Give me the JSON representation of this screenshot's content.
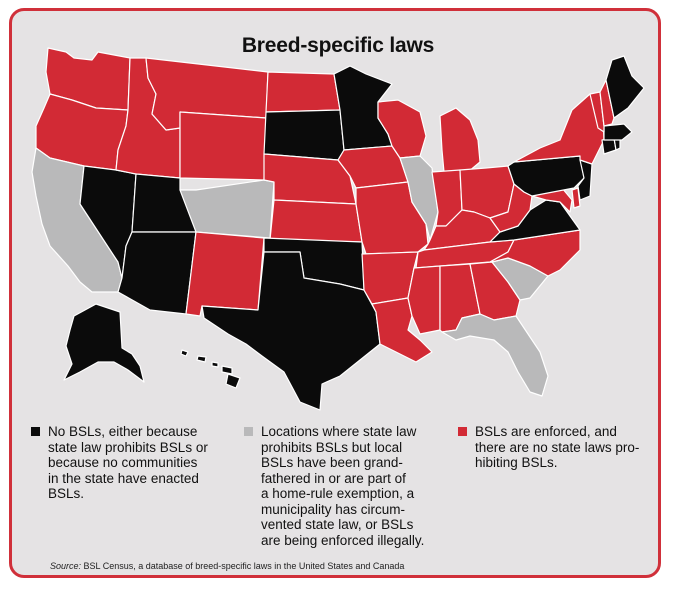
{
  "title": "Breed-specific laws",
  "colors": {
    "no_bsl": "#0b0b0b",
    "local_grandfathered": "#b9b9ba",
    "enforced": "#d22a35",
    "border": "#d0303a",
    "background": "#e5e3e4"
  },
  "legend": [
    {
      "category": "no_bsl",
      "text": "No BSLs, either because\nstate law prohibits BSLs or\nbecause no communities\nin the state have enacted\nBSLs."
    },
    {
      "category": "local_grandfathered",
      "text": "Locations where state law\nprohibits BSLs but local\nBSLs have been grand-\nfathered in or are part of\na home-rule exemption, a\nmunicipality has circum-\nvented state law, or BSLs\nare being enforced illegally."
    },
    {
      "category": "enforced",
      "text": "BSLs are enforced, and\nthere are no state laws pro-\nhibiting BSLs."
    }
  ],
  "source": {
    "label": "Source:",
    "text": " BSL Census, a database of breed-specific laws in the United States and Canada"
  },
  "states": {
    "WA": "enforced",
    "OR": "enforced",
    "CA": "local_grandfathered",
    "NV": "no_bsl",
    "ID": "enforced",
    "MT": "enforced",
    "WY": "enforced",
    "UT": "no_bsl",
    "AZ": "no_bsl",
    "CO": "local_grandfathered",
    "NM": "enforced",
    "ND": "enforced",
    "SD": "no_bsl",
    "NE": "enforced",
    "KS": "enforced",
    "OK": "no_bsl",
    "TX": "no_bsl",
    "MN": "no_bsl",
    "IA": "enforced",
    "MO": "enforced",
    "AR": "enforced",
    "LA": "enforced",
    "WI": "enforced",
    "IL": "local_grandfathered",
    "MI": "enforced",
    "IN": "enforced",
    "OH": "enforced",
    "KY": "enforced",
    "TN": "enforced",
    "MS": "enforced",
    "AL": "enforced",
    "GA": "enforced",
    "FL": "local_grandfathered",
    "SC": "local_grandfathered",
    "NC": "enforced",
    "VA": "no_bsl",
    "WV": "enforced",
    "MD": "enforced",
    "DE": "enforced",
    "PA": "no_bsl",
    "NJ": "no_bsl",
    "NY": "enforced",
    "CT": "no_bsl",
    "RI": "no_bsl",
    "MA": "no_bsl",
    "VT": "enforced",
    "NH": "enforced",
    "ME": "no_bsl",
    "AK": "no_bsl",
    "HI": "no_bsl"
  }
}
